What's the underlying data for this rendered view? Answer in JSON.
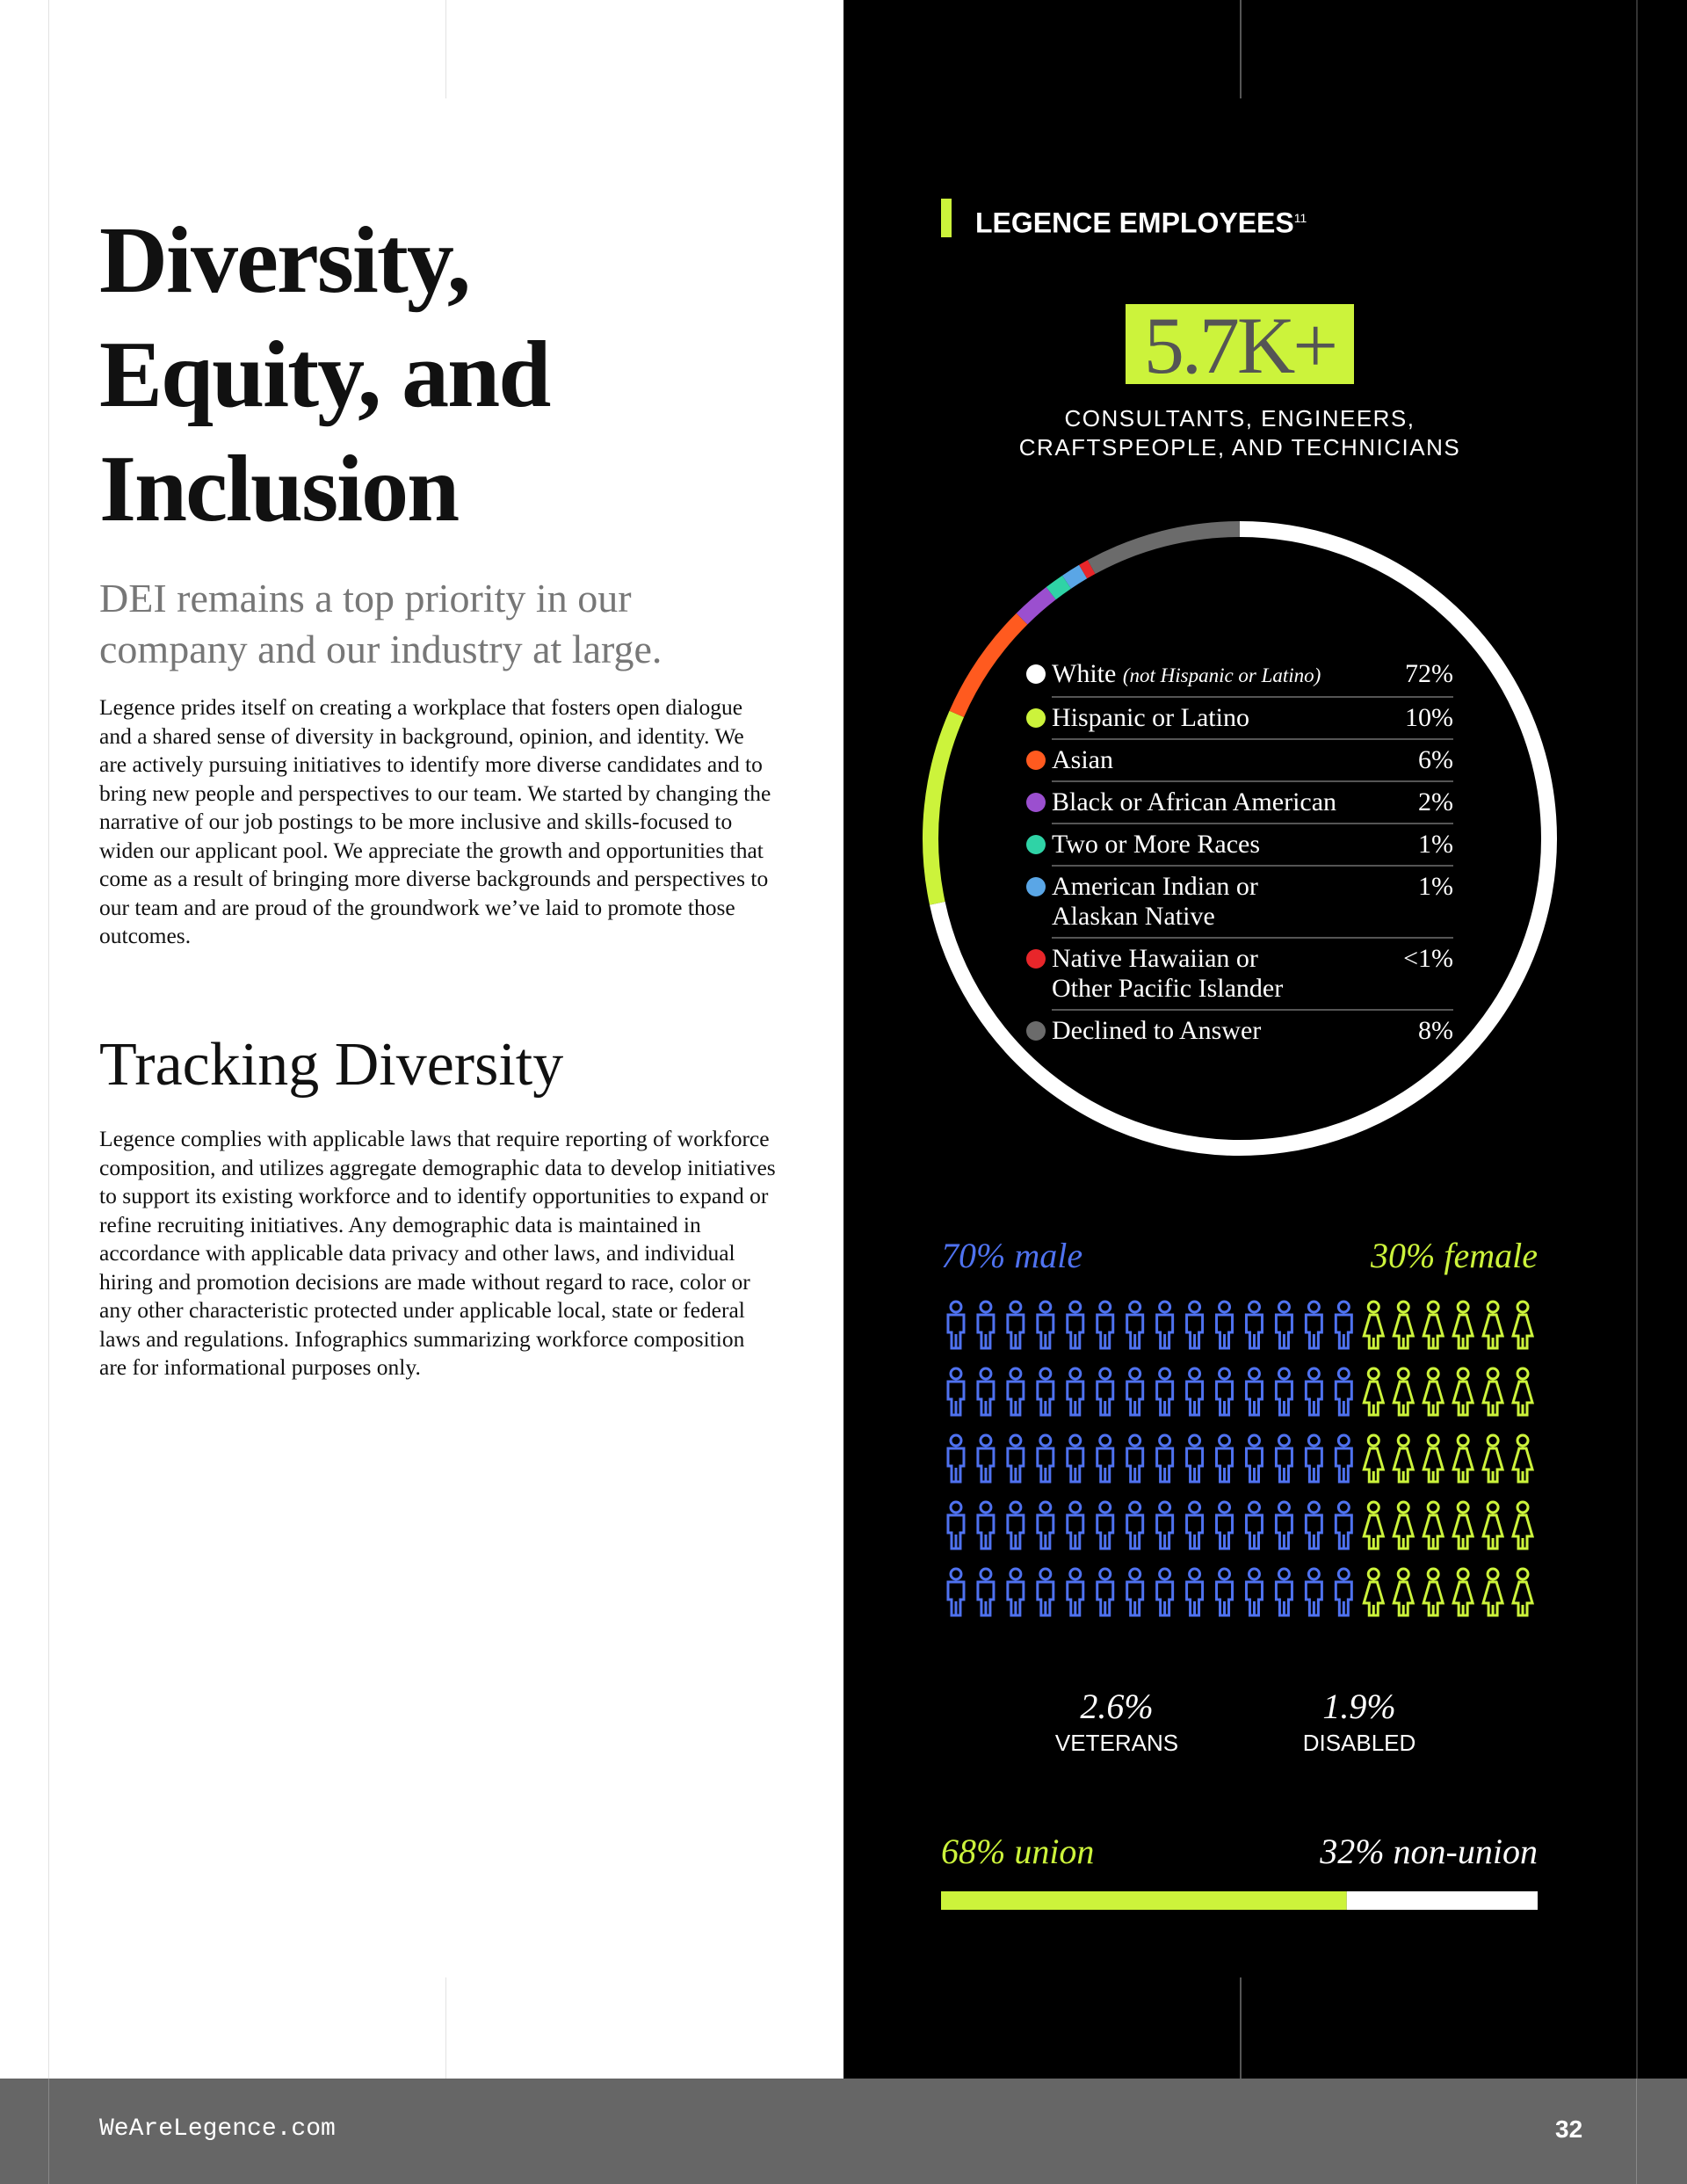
{
  "page": {
    "title": "Diversity,\nEquity, and\nInclusion",
    "subtitle": "DEI remains a top priority in our company and our industry at large.",
    "intro": "Legence prides itself on creating a workplace that fosters open dialogue and a shared sense of diversity in background, opinion, and identity. We are actively pursuing initiatives to identify more diverse candidates and to bring new people and perspectives to our team. We started by changing the narrative of our job postings to be more inclusive and skills-focused to widen our applicant pool. We appreciate the growth and opportunities that come as a result of bringing more diverse backgrounds and perspectives to our team and are proud of the groundwork we’ve laid to promote those outcomes.",
    "section_heading": "Tracking Diversity",
    "section_body": "Legence complies with applicable laws that require reporting of workforce composition, and utilizes aggregate demographic data to develop initiatives to support its existing workforce and to identify opportunities to expand or refine recruiting initiatives. Any demographic data is maintained in accordance with applicable data privacy and other laws, and individual hiring and promotion decisions are made without regard to race, color or any other characteristic protected under applicable local, state or federal laws and regulations. Infographics summarizing workforce composition are for informational purposes only.",
    "footer": {
      "url": "WeAreLegence.com",
      "page_number": "32"
    }
  },
  "panel": {
    "heading": "LEGENCE EMPLOYEES",
    "footnote": "11",
    "headline_stat": "5.7K+",
    "headline_caption": "CONSULTANTS, ENGINEERS,\nCRAFTSPEOPLE, AND TECHNICIANS",
    "stats": [
      {
        "value": "2.6%",
        "label": "VETERANS"
      },
      {
        "value": "1.9%",
        "label": "DISABLED"
      }
    ]
  },
  "chart_data": [
    {
      "type": "donut",
      "categories": [
        "White",
        "Hispanic or Latino",
        "Asian",
        "Black or African American",
        "Two or More Races",
        "American Indian or\nAlaskan Native",
        "Native Hawaiian or\nOther Pacific Islander",
        "Declined to Answer"
      ],
      "category_notes": {
        "White": "(not Hispanic or Latino)"
      },
      "values": [
        72,
        10,
        6,
        2,
        1,
        1,
        0.5,
        8
      ],
      "value_labels": [
        "72%",
        "10%",
        "6%",
        "2%",
        "1%",
        "1%",
        "<1%",
        "8%"
      ],
      "colors": [
        "#ffffff",
        "#ccf33b",
        "#ff5a1f",
        "#9b4fcf",
        "#2fd3a6",
        "#5aa6e6",
        "#e8262a",
        "#6b6b6b"
      ]
    },
    {
      "type": "waffle",
      "categories": [
        "male",
        "female"
      ],
      "values": [
        70,
        30
      ],
      "value_labels": [
        "70% male",
        "30% female"
      ],
      "colors": [
        "#4f72f0",
        "#ccf33b"
      ]
    },
    {
      "type": "stacked-bar",
      "categories": [
        "union",
        "non-union"
      ],
      "values": [
        68,
        32
      ],
      "value_labels": [
        "68% union",
        "32% non-union"
      ],
      "colors": [
        "#ccf33b",
        "#ffffff"
      ]
    }
  ]
}
